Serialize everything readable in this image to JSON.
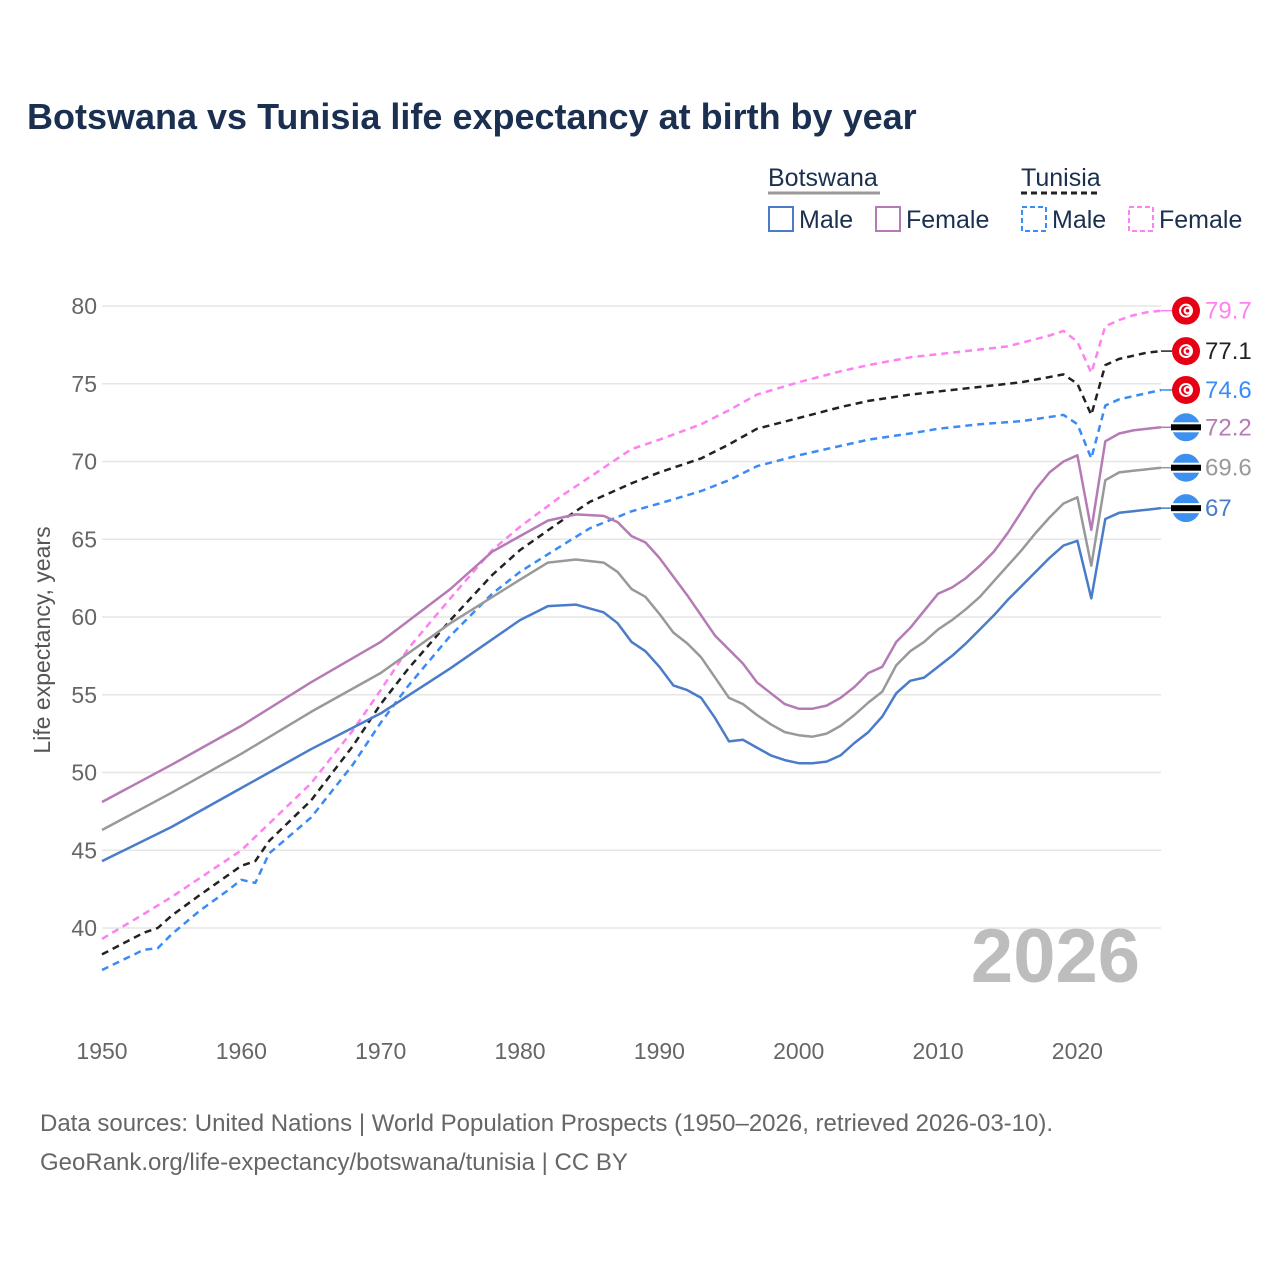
{
  "chart_data": {
    "type": "line",
    "title": "Botswana vs Tunisia life expectancy at birth by year",
    "xlabel": "",
    "ylabel": "Life expectancy, years",
    "xlim": [
      1950,
      2026
    ],
    "ylim": [
      35,
      82
    ],
    "x_ticks": [
      1950,
      1960,
      1970,
      1980,
      1990,
      2000,
      2010,
      2020
    ],
    "y_ticks": [
      40,
      45,
      50,
      55,
      60,
      65,
      70,
      75,
      80
    ],
    "grid": true,
    "current_year_label": "2026",
    "legend": {
      "placement": "top-right",
      "groups": [
        {
          "country": "Botswana",
          "items": [
            "Male",
            "Female"
          ]
        },
        {
          "country": "Tunisia",
          "items": [
            "Male",
            "Female"
          ]
        }
      ]
    },
    "series": [
      {
        "name": "Tunisia Female",
        "country": "Tunisia",
        "flag": "tunisia-flag",
        "color": "#ff80f0",
        "dashed": true,
        "end_label": "79.7",
        "points": [
          [
            1950,
            39.3
          ],
          [
            1953,
            40.9
          ],
          [
            1955,
            42.0
          ],
          [
            1960,
            45.0
          ],
          [
            1965,
            49.3
          ],
          [
            1968,
            52.7
          ],
          [
            1970,
            55.3
          ],
          [
            1972,
            58.0
          ],
          [
            1975,
            61.2
          ],
          [
            1978,
            64.3
          ],
          [
            1980,
            65.8
          ],
          [
            1983,
            67.8
          ],
          [
            1985,
            69.0
          ],
          [
            1988,
            70.8
          ],
          [
            1990,
            71.4
          ],
          [
            1993,
            72.4
          ],
          [
            1995,
            73.3
          ],
          [
            1997,
            74.3
          ],
          [
            2000,
            75.1
          ],
          [
            2003,
            75.8
          ],
          [
            2005,
            76.2
          ],
          [
            2008,
            76.7
          ],
          [
            2010,
            76.9
          ],
          [
            2013,
            77.2
          ],
          [
            2015,
            77.4
          ],
          [
            2018,
            78.1
          ],
          [
            2019,
            78.4
          ],
          [
            2020,
            77.7
          ],
          [
            2021,
            75.7
          ],
          [
            2022,
            78.7
          ],
          [
            2023,
            79.1
          ],
          [
            2024,
            79.4
          ],
          [
            2025,
            79.6
          ],
          [
            2026,
            79.7
          ]
        ]
      },
      {
        "name": "Tunisia",
        "country": "Tunisia",
        "flag": "tunisia-flag",
        "color": "#222222",
        "dashed": true,
        "end_label": "77.1",
        "points": [
          [
            1950,
            38.3
          ],
          [
            1953,
            39.7
          ],
          [
            1954,
            40.0
          ],
          [
            1955,
            40.8
          ],
          [
            1957,
            42.1
          ],
          [
            1960,
            44.0
          ],
          [
            1961,
            44.3
          ],
          [
            1962,
            45.6
          ],
          [
            1965,
            48.2
          ],
          [
            1968,
            51.7
          ],
          [
            1970,
            54.4
          ],
          [
            1972,
            56.7
          ],
          [
            1975,
            59.8
          ],
          [
            1978,
            62.7
          ],
          [
            1980,
            64.3
          ],
          [
            1983,
            66.2
          ],
          [
            1985,
            67.4
          ],
          [
            1988,
            68.6
          ],
          [
            1990,
            69.3
          ],
          [
            1993,
            70.2
          ],
          [
            1995,
            71.1
          ],
          [
            1997,
            72.1
          ],
          [
            2000,
            72.8
          ],
          [
            2003,
            73.5
          ],
          [
            2005,
            73.9
          ],
          [
            2008,
            74.3
          ],
          [
            2010,
            74.5
          ],
          [
            2013,
            74.8
          ],
          [
            2016,
            75.1
          ],
          [
            2019,
            75.6
          ],
          [
            2020,
            75.0
          ],
          [
            2021,
            73.0
          ],
          [
            2022,
            76.2
          ],
          [
            2023,
            76.6
          ],
          [
            2025,
            77.0
          ],
          [
            2026,
            77.1
          ]
        ]
      },
      {
        "name": "Tunisia Male",
        "country": "Tunisia",
        "flag": "tunisia-flag",
        "color": "#3a8bf5",
        "dashed": true,
        "end_label": "74.6",
        "points": [
          [
            1950,
            37.3
          ],
          [
            1953,
            38.6
          ],
          [
            1954,
            38.7
          ],
          [
            1955,
            39.6
          ],
          [
            1957,
            41.1
          ],
          [
            1959,
            42.4
          ],
          [
            1960,
            43.1
          ],
          [
            1961,
            42.9
          ],
          [
            1962,
            44.8
          ],
          [
            1965,
            47.1
          ],
          [
            1968,
            50.5
          ],
          [
            1970,
            53.2
          ],
          [
            1972,
            55.6
          ],
          [
            1975,
            58.8
          ],
          [
            1978,
            61.5
          ],
          [
            1980,
            62.9
          ],
          [
            1983,
            64.6
          ],
          [
            1985,
            65.7
          ],
          [
            1988,
            66.8
          ],
          [
            1990,
            67.3
          ],
          [
            1993,
            68.1
          ],
          [
            1995,
            68.8
          ],
          [
            1997,
            69.7
          ],
          [
            2000,
            70.4
          ],
          [
            2003,
            71.0
          ],
          [
            2005,
            71.4
          ],
          [
            2008,
            71.8
          ],
          [
            2010,
            72.1
          ],
          [
            2013,
            72.4
          ],
          [
            2016,
            72.6
          ],
          [
            2019,
            73.0
          ],
          [
            2020,
            72.4
          ],
          [
            2021,
            70.2
          ],
          [
            2022,
            73.6
          ],
          [
            2023,
            74.0
          ],
          [
            2025,
            74.4
          ],
          [
            2026,
            74.6
          ]
        ]
      },
      {
        "name": "Botswana Female",
        "country": "Botswana",
        "flag": "botswana-flag",
        "color": "#b57bb5",
        "dashed": false,
        "end_label": "72.2",
        "points": [
          [
            1950,
            48.1
          ],
          [
            1955,
            50.5
          ],
          [
            1960,
            53.0
          ],
          [
            1965,
            55.8
          ],
          [
            1970,
            58.4
          ],
          [
            1975,
            61.8
          ],
          [
            1978,
            64.2
          ],
          [
            1980,
            65.2
          ],
          [
            1982,
            66.2
          ],
          [
            1984,
            66.6
          ],
          [
            1986,
            66.5
          ],
          [
            1987,
            66.1
          ],
          [
            1988,
            65.2
          ],
          [
            1989,
            64.8
          ],
          [
            1990,
            63.8
          ],
          [
            1992,
            61.4
          ],
          [
            1994,
            58.8
          ],
          [
            1996,
            57.0
          ],
          [
            1997,
            55.8
          ],
          [
            1999,
            54.4
          ],
          [
            2000,
            54.1
          ],
          [
            2001,
            54.1
          ],
          [
            2002,
            54.3
          ],
          [
            2003,
            54.8
          ],
          [
            2004,
            55.5
          ],
          [
            2005,
            56.4
          ],
          [
            2006,
            56.8
          ],
          [
            2007,
            58.4
          ],
          [
            2008,
            59.3
          ],
          [
            2009,
            60.4
          ],
          [
            2010,
            61.5
          ],
          [
            2011,
            61.9
          ],
          [
            2012,
            62.5
          ],
          [
            2013,
            63.3
          ],
          [
            2014,
            64.2
          ],
          [
            2015,
            65.4
          ],
          [
            2016,
            66.8
          ],
          [
            2017,
            68.2
          ],
          [
            2018,
            69.3
          ],
          [
            2019,
            70.0
          ],
          [
            2020,
            70.4
          ],
          [
            2021,
            65.6
          ],
          [
            2022,
            71.3
          ],
          [
            2023,
            71.8
          ],
          [
            2024,
            72.0
          ],
          [
            2025,
            72.1
          ],
          [
            2026,
            72.2
          ]
        ]
      },
      {
        "name": "Botswana",
        "country": "Botswana",
        "flag": "botswana-flag",
        "color": "#999999",
        "dashed": false,
        "end_label": "69.6",
        "points": [
          [
            1950,
            46.3
          ],
          [
            1955,
            48.7
          ],
          [
            1960,
            51.2
          ],
          [
            1965,
            53.9
          ],
          [
            1970,
            56.4
          ],
          [
            1975,
            59.6
          ],
          [
            1980,
            62.4
          ],
          [
            1982,
            63.5
          ],
          [
            1984,
            63.7
          ],
          [
            1986,
            63.5
          ],
          [
            1987,
            62.9
          ],
          [
            1988,
            61.8
          ],
          [
            1989,
            61.3
          ],
          [
            1990,
            60.2
          ],
          [
            1991,
            59.0
          ],
          [
            1992,
            58.3
          ],
          [
            1993,
            57.4
          ],
          [
            1994,
            56.1
          ],
          [
            1995,
            54.8
          ],
          [
            1996,
            54.4
          ],
          [
            1997,
            53.7
          ],
          [
            1998,
            53.1
          ],
          [
            1999,
            52.6
          ],
          [
            2000,
            52.4
          ],
          [
            2001,
            52.3
          ],
          [
            2002,
            52.5
          ],
          [
            2003,
            53.0
          ],
          [
            2004,
            53.7
          ],
          [
            2005,
            54.5
          ],
          [
            2006,
            55.2
          ],
          [
            2007,
            56.9
          ],
          [
            2008,
            57.8
          ],
          [
            2009,
            58.4
          ],
          [
            2010,
            59.2
          ],
          [
            2011,
            59.8
          ],
          [
            2012,
            60.5
          ],
          [
            2013,
            61.3
          ],
          [
            2014,
            62.3
          ],
          [
            2015,
            63.3
          ],
          [
            2016,
            64.3
          ],
          [
            2017,
            65.4
          ],
          [
            2018,
            66.4
          ],
          [
            2019,
            67.3
          ],
          [
            2020,
            67.7
          ],
          [
            2021,
            63.3
          ],
          [
            2022,
            68.8
          ],
          [
            2023,
            69.3
          ],
          [
            2024,
            69.4
          ],
          [
            2025,
            69.5
          ],
          [
            2026,
            69.6
          ]
        ]
      },
      {
        "name": "Botswana Male",
        "country": "Botswana",
        "flag": "botswana-flag",
        "color": "#4a7cc9",
        "dashed": false,
        "end_label": "67",
        "points": [
          [
            1950,
            44.3
          ],
          [
            1955,
            46.5
          ],
          [
            1960,
            49.0
          ],
          [
            1965,
            51.5
          ],
          [
            1970,
            53.8
          ],
          [
            1975,
            56.7
          ],
          [
            1980,
            59.8
          ],
          [
            1982,
            60.7
          ],
          [
            1984,
            60.8
          ],
          [
            1986,
            60.3
          ],
          [
            1987,
            59.6
          ],
          [
            1988,
            58.4
          ],
          [
            1989,
            57.8
          ],
          [
            1990,
            56.8
          ],
          [
            1991,
            55.6
          ],
          [
            1992,
            55.3
          ],
          [
            1993,
            54.8
          ],
          [
            1994,
            53.5
          ],
          [
            1995,
            52.0
          ],
          [
            1996,
            52.1
          ],
          [
            1997,
            51.6
          ],
          [
            1998,
            51.1
          ],
          [
            1999,
            50.8
          ],
          [
            2000,
            50.6
          ],
          [
            2001,
            50.6
          ],
          [
            2002,
            50.7
          ],
          [
            2003,
            51.1
          ],
          [
            2004,
            51.9
          ],
          [
            2005,
            52.6
          ],
          [
            2006,
            53.6
          ],
          [
            2007,
            55.1
          ],
          [
            2008,
            55.9
          ],
          [
            2009,
            56.1
          ],
          [
            2010,
            56.8
          ],
          [
            2011,
            57.5
          ],
          [
            2012,
            58.3
          ],
          [
            2013,
            59.2
          ],
          [
            2014,
            60.1
          ],
          [
            2015,
            61.1
          ],
          [
            2016,
            62.0
          ],
          [
            2017,
            62.9
          ],
          [
            2018,
            63.8
          ],
          [
            2019,
            64.6
          ],
          [
            2020,
            64.9
          ],
          [
            2021,
            61.2
          ],
          [
            2022,
            66.3
          ],
          [
            2023,
            66.7
          ],
          [
            2024,
            66.8
          ],
          [
            2025,
            66.9
          ],
          [
            2026,
            67.0
          ]
        ]
      }
    ]
  },
  "footer": {
    "line1": "Data sources: United Nations | World Population Prospects (1950–2026, retrieved 2026-03-10).",
    "line2": "GeoRank.org/life-expectancy/botswana/tunisia | CC BY"
  }
}
